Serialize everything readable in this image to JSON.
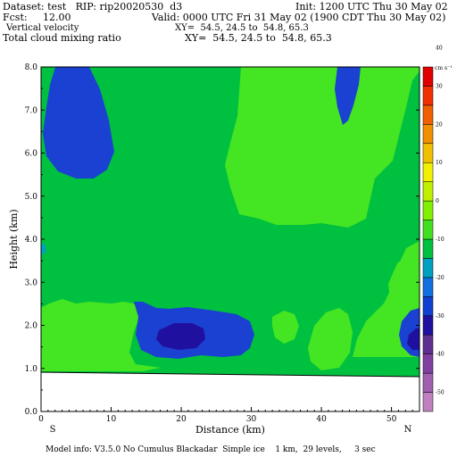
{
  "header": {
    "dataset": "Dataset: test   RIP: rip20020530  d3",
    "init": "Init: 1200 UTC Thu 30 May 02",
    "fcst": "Fcst:     12.00",
    "valid": "Valid: 0000 UTC Fri 31 May 02 (1900 CDT Thu 30 May 02)",
    "field1": "Vertical velocity",
    "field1_xy": "XY=  54.5, 24.5 to  54.8, 65.3",
    "field2": "Total cloud mixing ratio",
    "field2_xy": "XY=  54.5, 24.5 to  54.8, 65.3"
  },
  "footer": "Model info: V3.5.0 No Cumulus Blackadar  Simple ice    1 km,  29 levels,     3 sec",
  "chart_data": {
    "type": "heatmap",
    "xlabel": "Distance (km)",
    "ylabel": "Height (km)",
    "xlim": [
      0,
      54
    ],
    "ylim": [
      0,
      8
    ],
    "xticks": [
      "0",
      "10",
      "20",
      "30",
      "40",
      "50"
    ],
    "yticks": [
      "0.0",
      "1.0",
      "2.0",
      "3.0",
      "4.0",
      "5.0",
      "6.0",
      "7.0",
      "8.0"
    ],
    "left_end_label": "S",
    "right_end_label": "N",
    "colorbar": {
      "unit": "cm s⁻¹",
      "labels": [
        "-50",
        "-40",
        "-30",
        "-20",
        "-10",
        "0",
        "10",
        "20",
        "30",
        "40"
      ],
      "colors": [
        "#c080c0",
        "#a060b0",
        "#8040a0",
        "#603090",
        "#2010a0",
        "#1040d0",
        "#1070e0",
        "#00a0c0",
        "#00c040",
        "#40e020",
        "#80f000",
        "#c0f000",
        "#f0f000",
        "#f0c000",
        "#f09000",
        "#f06000",
        "#f03000",
        "#e00000"
      ]
    },
    "levels_colors": {
      "blue": "#1a41d1",
      "green": "#00c040",
      "light_green": "#44e522",
      "cyan": "#00a0c0"
    },
    "terrain_height_km": [
      0.9,
      0.85
    ]
  }
}
